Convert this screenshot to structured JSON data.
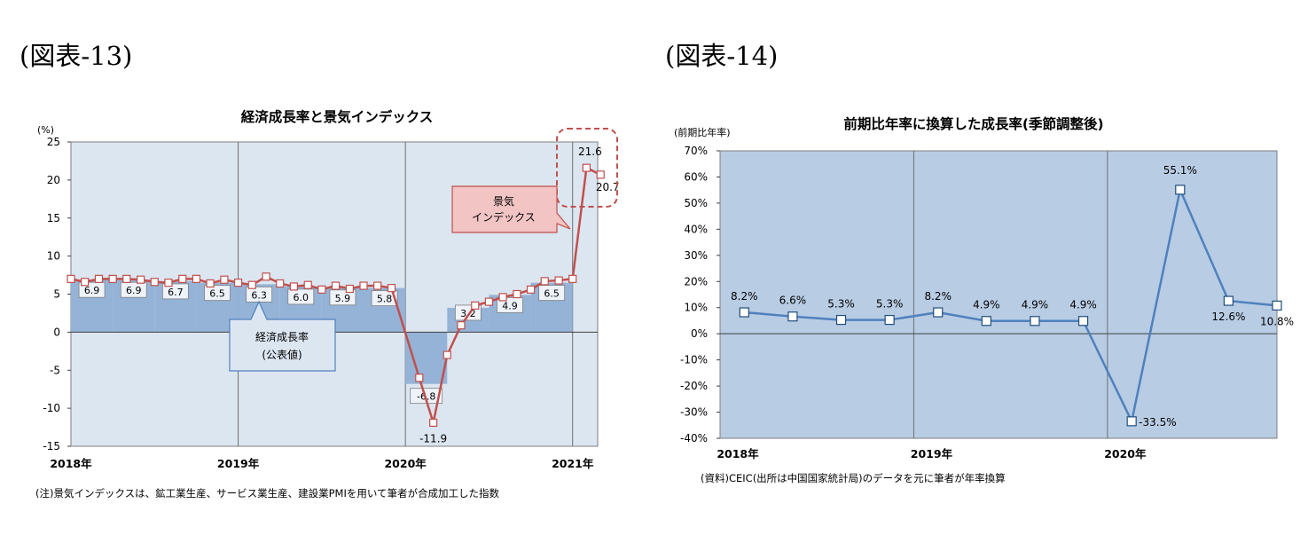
{
  "figures": [
    {
      "caption": "(図表-13)",
      "note": "(注)景気インデックスは、鉱工業生産、サービス業生産、建設業PMIを用いて筆者が合成加工した指数"
    },
    {
      "caption": "(図表-14)",
      "note": "(資料)CEIC(出所は中国国家統計局)のデータを元に筆者が年率換算"
    }
  ],
  "chart_data": [
    {
      "type": "line",
      "title": "経済成長率と景気インデックス",
      "ylabel": "(%)",
      "ylim": [
        -15,
        25
      ],
      "yticks": [
        -15,
        -10,
        -5,
        0,
        5,
        10,
        15,
        20,
        25
      ],
      "xlim": [
        2018.0,
        2021.15
      ],
      "xticks": [
        {
          "value": 2018.0,
          "label": "2018年"
        },
        {
          "value": 2019.0,
          "label": "2019年"
        },
        {
          "value": 2020.0,
          "label": "2020年"
        },
        {
          "value": 2021.0,
          "label": "2021年"
        }
      ],
      "grid": "vertical-at-years",
      "colors": {
        "plot_bg": "#dce6f1",
        "area": "#95b3d7",
        "line": "#c0504d",
        "annotation_fill": "#f2c4c4",
        "callout_fill": "#dce6f1",
        "callout_border": "#4f81bd"
      },
      "series": [
        {
          "name": "経済成長率(公表値)",
          "type": "step-area",
          "points": [
            {
              "start": 2018.0,
              "end": 2018.25,
              "value": 6.9
            },
            {
              "start": 2018.25,
              "end": 2018.5,
              "value": 6.9
            },
            {
              "start": 2018.5,
              "end": 2018.75,
              "value": 6.7
            },
            {
              "start": 2018.75,
              "end": 2019.0,
              "value": 6.5
            },
            {
              "start": 2019.0,
              "end": 2019.25,
              "value": 6.3
            },
            {
              "start": 2019.25,
              "end": 2019.5,
              "value": 6.0
            },
            {
              "start": 2019.5,
              "end": 2019.75,
              "value": 5.9
            },
            {
              "start": 2019.75,
              "end": 2020.0,
              "value": 5.8
            },
            {
              "start": 2020.0,
              "end": 2020.25,
              "value": -6.8
            },
            {
              "start": 2020.25,
              "end": 2020.5,
              "value": 3.2
            },
            {
              "start": 2020.5,
              "end": 2020.75,
              "value": 4.9
            },
            {
              "start": 2020.75,
              "end": 2021.0,
              "value": 6.5
            }
          ],
          "data_labels": [
            "6.9",
            "6.9",
            "6.7",
            "6.5",
            "6.3",
            "6.0",
            "5.9",
            "5.8",
            "-6.8",
            "3.2",
            "4.9",
            "6.5"
          ]
        },
        {
          "name": "景気インデックス",
          "type": "line",
          "x": [
            2018.0,
            2018.083,
            2018.167,
            2018.25,
            2018.333,
            2018.417,
            2018.5,
            2018.583,
            2018.667,
            2018.75,
            2018.833,
            2018.917,
            2019.0,
            2019.083,
            2019.167,
            2019.25,
            2019.333,
            2019.417,
            2019.5,
            2019.583,
            2019.667,
            2019.75,
            2019.833,
            2019.917,
            2020.0,
            2020.083,
            2020.167,
            2020.25,
            2020.333,
            2020.417,
            2020.5,
            2020.583,
            2020.667,
            2020.75,
            2020.833,
            2020.917,
            2021.0,
            2021.083,
            2021.167
          ],
          "values": [
            7.0,
            6.6,
            7.0,
            7.0,
            7.0,
            6.9,
            6.6,
            6.5,
            7.0,
            7.0,
            6.4,
            6.9,
            6.5,
            6.2,
            7.3,
            6.4,
            6.0,
            6.2,
            5.6,
            6.1,
            5.7,
            6.1,
            6.1,
            5.8,
            null,
            -6.0,
            -11.9,
            -3.0,
            0.9,
            3.5,
            4.0,
            4.6,
            5.0,
            5.6,
            6.7,
            6.8,
            7.0,
            21.6,
            20.7
          ],
          "point_labels": [
            {
              "index": 26,
              "label": "-11.9"
            },
            {
              "index": 37,
              "label": "21.6"
            },
            {
              "index": 38,
              "label": "20.7"
            }
          ]
        }
      ],
      "annotations": [
        {
          "text": "景気\nインデックス",
          "style": "red-callout"
        },
        {
          "text": "経済成長率\n(公表値)",
          "style": "blue-callout"
        }
      ]
    },
    {
      "type": "line",
      "title": "前期比年率に換算した成長率(季節調整後)",
      "ylabel": "(前期比年率)",
      "ylim": [
        -40,
        70
      ],
      "yticks": [
        -40,
        -30,
        -20,
        -10,
        0,
        10,
        20,
        30,
        40,
        50,
        60,
        70
      ],
      "ytick_labels": [
        "-40%",
        "-30%",
        "-20%",
        "-10%",
        "0%",
        "10%",
        "20%",
        "30%",
        "40%",
        "50%",
        "60%",
        "70%"
      ],
      "xlim": [
        2018.0,
        2020.875
      ],
      "xticks": [
        {
          "value": 2018.0,
          "label": "2018年"
        },
        {
          "value": 2019.0,
          "label": "2019年"
        },
        {
          "value": 2020.0,
          "label": "2020年"
        }
      ],
      "grid": "vertical-at-years",
      "colors": {
        "plot_bg": "#b8cce4",
        "line": "#4f81bd"
      },
      "series": [
        {
          "x": [
            2018.125,
            2018.375,
            2018.625,
            2018.875,
            2019.125,
            2019.375,
            2019.625,
            2019.875,
            2020.125,
            2020.375,
            2020.625,
            2020.875
          ],
          "values": [
            8.2,
            6.6,
            5.3,
            5.3,
            8.2,
            4.9,
            4.9,
            4.9,
            -33.5,
            55.1,
            12.6,
            10.8
          ],
          "data_labels": [
            "8.2%",
            "6.6%",
            "5.3%",
            "5.3%",
            "8.2%",
            "4.9%",
            "4.9%",
            "4.9%",
            "-33.5%",
            "55.1%",
            "12.6%",
            "10.8%"
          ]
        }
      ]
    }
  ]
}
